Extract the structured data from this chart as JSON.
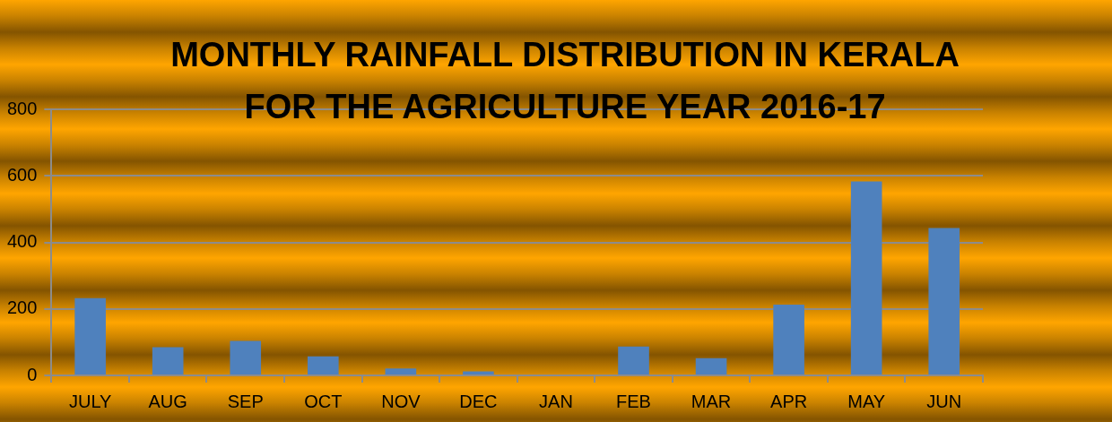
{
  "chart_data": {
    "type": "bar",
    "title": "MONTHLY RAINFALL DISTRIBUTION IN KERALA FOR THE AGRICULTURE YEAR 2016-17",
    "categories": [
      "JULY",
      "AUG",
      "SEP",
      "OCT",
      "NOV",
      "DEC",
      "JAN",
      "FEB",
      "MAR",
      "APR",
      "MAY",
      "JUN"
    ],
    "values": [
      232,
      85,
      104,
      57,
      21,
      12,
      0,
      87,
      52,
      213,
      583,
      443
    ],
    "color": "#4f81bd",
    "ylim": [
      0,
      800
    ],
    "yticks": [
      0,
      200,
      400,
      600,
      800
    ],
    "grid": "y"
  }
}
